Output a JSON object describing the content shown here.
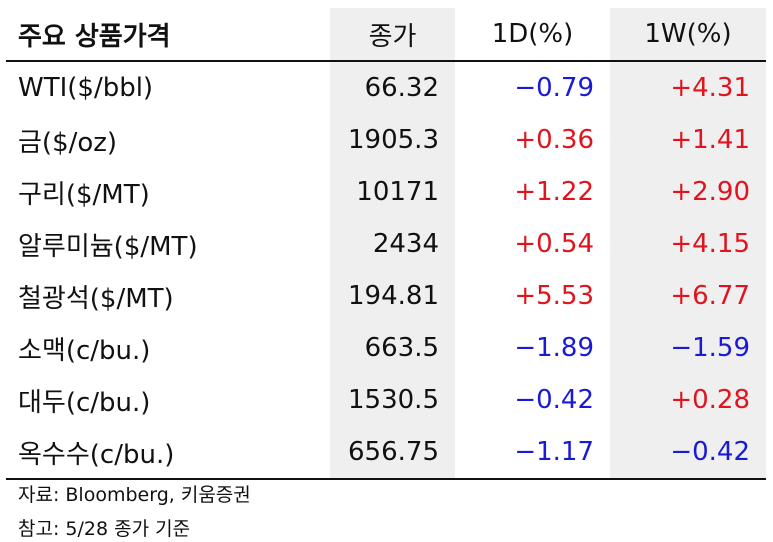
{
  "table": {
    "header": [
      "주요 상품가격",
      "종가",
      "1D(%)",
      "1W(%)"
    ],
    "rows": [
      [
        "WTI($/bbl)",
        "66.32",
        "−0.79",
        "+4.31"
      ],
      [
        "금($/oz)",
        "1905.3",
        "+0.36",
        "+1.41"
      ],
      [
        "구리($/MT)",
        "10171",
        "+1.22",
        "+2.90"
      ],
      [
        "알루미늄($/MT)",
        "2434",
        "+0.54",
        "+4.15"
      ],
      [
        "철광석($/MT)",
        "194.81",
        "+5.53",
        "+6.77"
      ],
      [
        "소맥(c/bu.)",
        "663.5",
        "−1.89",
        "−1.59"
      ],
      [
        "대두(c/bu.)",
        "1530.5",
        "−0.42",
        "+0.28"
      ],
      [
        "옥수수(c/bu.)",
        "656.75",
        "−1.17",
        "−0.42"
      ]
    ]
  },
  "notes": [
    "자료: Bloomberg, 키움증권",
    "참고: 5/28 종가 기준"
  ]
}
